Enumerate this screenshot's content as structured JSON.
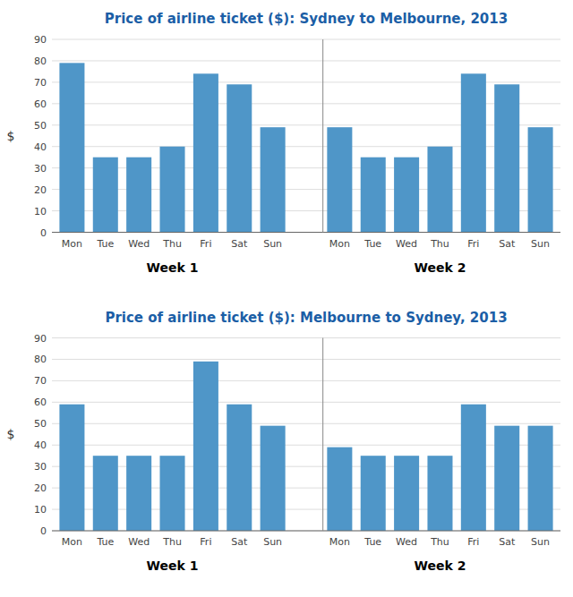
{
  "chart_data": [
    {
      "type": "bar",
      "title": "Price of airline ticket ($): Sydney to Melbourne, 2013",
      "ylabel": "$",
      "categories": [
        "Mon",
        "Tue",
        "Wed",
        "Thu",
        "Fri",
        "Sat",
        "Sun",
        "Mon",
        "Tue",
        "Wed",
        "Thu",
        "Fri",
        "Sat",
        "Sun"
      ],
      "values": [
        79,
        35,
        35,
        40,
        74,
        69,
        49,
        49,
        35,
        35,
        40,
        74,
        69,
        49
      ],
      "annotations": [
        "Week 1",
        "Week 2"
      ],
      "color": "#4F96C8",
      "ylim": [
        0,
        90
      ],
      "yticks": [
        0,
        10,
        20,
        30,
        40,
        50,
        60,
        70,
        80,
        90
      ],
      "grid": true
    },
    {
      "type": "bar",
      "title": "Price of airline ticket ($): Melbourne to Sydney, 2013",
      "ylabel": "$",
      "categories": [
        "Mon",
        "Tue",
        "Wed",
        "Thu",
        "Fri",
        "Sat",
        "Sun",
        "Mon",
        "Tue",
        "Wed",
        "Thu",
        "Fri",
        "Sat",
        "Sun"
      ],
      "values": [
        59,
        35,
        35,
        35,
        79,
        59,
        49,
        39,
        35,
        35,
        35,
        59,
        49,
        49
      ],
      "annotations": [
        "Week 1",
        "Week 2"
      ],
      "color": "#4F96C8",
      "ylim": [
        0,
        90
      ],
      "yticks": [
        0,
        10,
        20,
        30,
        40,
        50,
        60,
        70,
        80,
        90
      ],
      "grid": true
    }
  ]
}
